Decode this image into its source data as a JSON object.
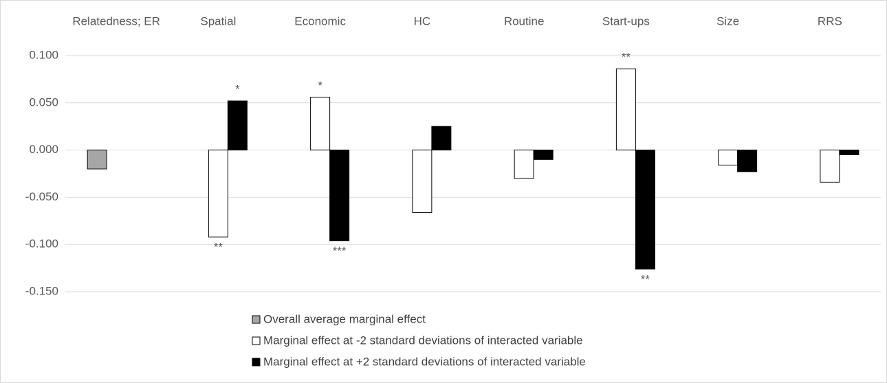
{
  "chart_data": {
    "type": "bar",
    "categories": [
      "Relatedness; ER",
      "Spatial",
      "Economic",
      "HC",
      "Routine",
      "Start-ups",
      "Size",
      "RRS"
    ],
    "series": [
      {
        "name": "Overall average marginal effect",
        "color": "#a6a6a6",
        "values": [
          -0.02,
          null,
          null,
          null,
          null,
          null,
          null,
          null
        ],
        "stars": [
          null,
          null,
          null,
          null,
          null,
          null,
          null,
          null
        ]
      },
      {
        "name": "Marginal effect at -2 standard deviations of interacted variable",
        "color": "#ffffff",
        "values": [
          null,
          -0.092,
          0.056,
          -0.066,
          -0.03,
          0.086,
          -0.016,
          -0.034
        ],
        "stars": [
          null,
          "**",
          "*",
          null,
          null,
          "**",
          null,
          null
        ]
      },
      {
        "name": "Marginal effect at +2 standard deviations of interacted variable",
        "color": "#000000",
        "values": [
          null,
          0.052,
          -0.096,
          0.025,
          -0.01,
          -0.126,
          -0.023,
          -0.005
        ],
        "stars": [
          null,
          "*",
          "***",
          null,
          null,
          "**",
          null,
          null
        ]
      }
    ],
    "ylim": [
      -0.15,
      0.1
    ],
    "yticks": [
      {
        "value": 0.1,
        "label": "0.100"
      },
      {
        "value": 0.05,
        "label": "0.050"
      },
      {
        "value": 0,
        "label": "0.000"
      },
      {
        "value": -0.05,
        "label": "-0.050"
      },
      {
        "value": -0.1,
        "label": "-0.100"
      },
      {
        "value": -0.15,
        "label": "-0.150"
      }
    ],
    "grid": true,
    "legend": "bottom"
  }
}
